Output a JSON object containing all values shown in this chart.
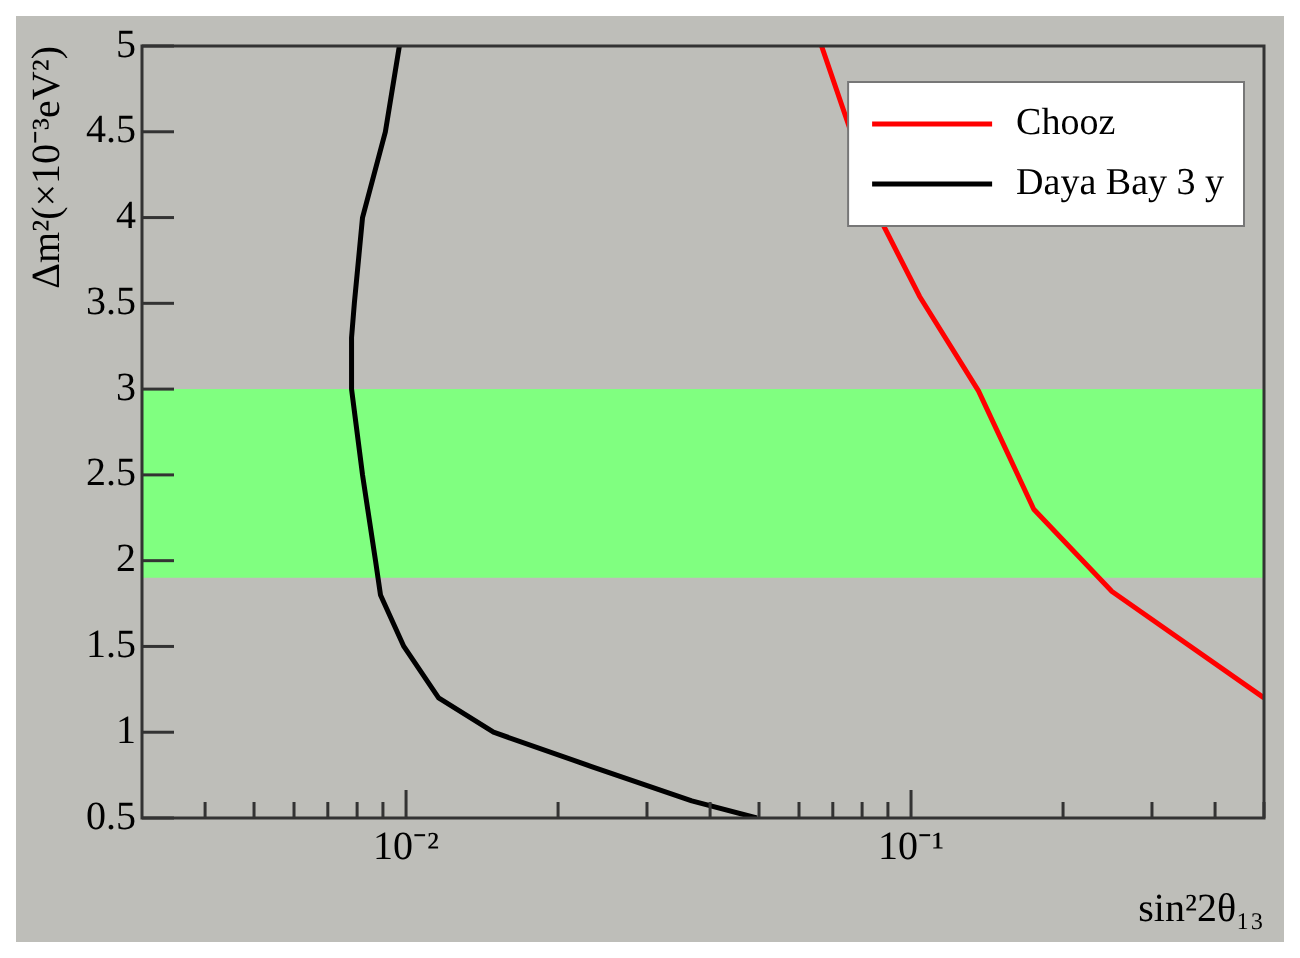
{
  "chart_data": {
    "type": "line",
    "xlabel": "sin²2θ₁₃",
    "ylabel": "Δm²(×10⁻³eV²)",
    "log": "x",
    "xlim": [
      0.003,
      0.5
    ],
    "ylim": [
      0.5,
      5
    ],
    "marker": "none",
    "line_style": "solid",
    "legend": "top right",
    "xticks": [
      {
        "value": 0.004,
        "label": null
      },
      {
        "value": 0.005,
        "label": null
      },
      {
        "value": 0.006,
        "label": null
      },
      {
        "value": 0.007,
        "label": null
      },
      {
        "value": 0.008,
        "label": null
      },
      {
        "value": 0.009,
        "label": null
      },
      {
        "value": 0.01,
        "label": "10⁻²"
      },
      {
        "value": 0.02,
        "label": null
      },
      {
        "value": 0.03,
        "label": null
      },
      {
        "value": 0.04,
        "label": null
      },
      {
        "value": 0.05,
        "label": null
      },
      {
        "value": 0.06,
        "label": null
      },
      {
        "value": 0.07,
        "label": null
      },
      {
        "value": 0.08,
        "label": null
      },
      {
        "value": 0.09,
        "label": null
      },
      {
        "value": 0.1,
        "label": "10⁻¹"
      },
      {
        "value": 0.2,
        "label": null
      },
      {
        "value": 0.3,
        "label": null
      },
      {
        "value": 0.4,
        "label": null
      },
      {
        "value": 0.5,
        "label": null
      }
    ],
    "yticks": [
      0.5,
      1,
      1.5,
      2,
      2.5,
      3,
      3.5,
      4,
      4.5,
      5
    ],
    "bands": [
      {
        "axis": "y",
        "from": 1.9,
        "to": 3.0,
        "color": "#80ff80"
      }
    ],
    "series": [
      {
        "name": "Chooz",
        "color": "#ff0000",
        "x": [
          0.0665,
          0.0876,
          0.104,
          0.136,
          0.175,
          0.25,
          0.5
        ],
        "values": [
          5,
          3.97,
          3.54,
          2.99,
          2.3,
          1.82,
          1.2
        ]
      },
      {
        "name": "Daya Bay 3 y",
        "color": "#000000",
        "x": [
          0.0097,
          0.0091,
          0.0082,
          0.0079,
          0.0078,
          0.0078,
          0.0082,
          0.0087,
          0.0089,
          0.0099,
          0.0116,
          0.0149,
          0.0233,
          0.0368,
          0.0495
        ],
        "values": [
          5,
          4.5,
          4,
          3.5,
          3.3,
          3,
          2.5,
          2,
          1.8,
          1.5,
          1.2,
          1,
          0.8,
          0.6,
          0.5
        ]
      }
    ]
  }
}
